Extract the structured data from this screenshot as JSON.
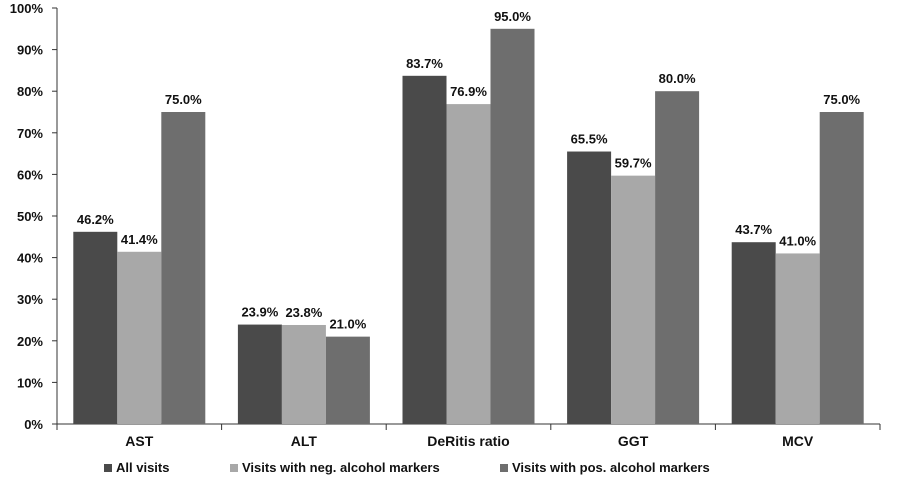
{
  "chart_data": {
    "type": "bar",
    "categories": [
      "AST",
      "ALT",
      "DeRitis ratio",
      "GGT",
      "MCV"
    ],
    "series": [
      {
        "name": "All visits",
        "values": [
          46.2,
          23.9,
          83.7,
          65.5,
          43.7
        ],
        "color": "#4a4a4a"
      },
      {
        "name": "Visits with neg. alcohol markers",
        "values": [
          41.4,
          23.8,
          76.9,
          59.7,
          41.0
        ],
        "color": "#a8a8a8"
      },
      {
        "name": "Visits with pos. alcohol markers",
        "values": [
          75.0,
          21.0,
          95.0,
          80.0,
          75.0
        ],
        "color": "#6e6e6e"
      }
    ],
    "data_labels": [
      [
        "46.2%",
        "23.9%",
        "83.7%",
        "65.5%",
        "43.7%"
      ],
      [
        "41.4%",
        "23.8%",
        "76.9%",
        "59.7%",
        "41.0%"
      ],
      [
        "75.0%",
        "21.0%",
        "95.0%",
        "80.0%",
        "75.0%"
      ]
    ],
    "ylim": [
      0,
      100
    ],
    "yticks": [
      "0%",
      "10%",
      "20%",
      "30%",
      "40%",
      "50%",
      "60%",
      "70%",
      "80%",
      "90%",
      "100%"
    ],
    "title": "",
    "xlabel": "",
    "ylabel": "",
    "grid": false,
    "legend_position": "bottom"
  }
}
